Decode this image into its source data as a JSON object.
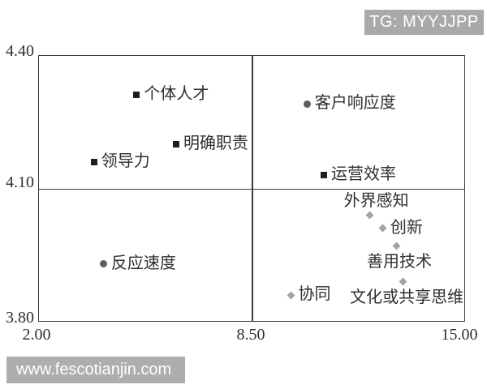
{
  "overlays": {
    "badge_text": "TG: MYYJJPP",
    "watermark_text": "www.fescotianjin.com"
  },
  "colors": {
    "badge_bg": "#a9a9a9",
    "watermark_bg": "#aeaeae",
    "axis_line": "#3b3b3b",
    "label_text": "#2f2f2f",
    "marker_square": "#1e1e1e",
    "marker_circle": "#5e5e5e",
    "marker_diamond": "#a3a3a3"
  },
  "chart_data": {
    "type": "scatter",
    "title": "",
    "xlabel": "",
    "ylabel": "",
    "grid": false,
    "legend": false,
    "x_axis": {
      "min": 2.0,
      "max": 15.0,
      "ticks": [
        "2.00",
        "8.50",
        "15.00"
      ]
    },
    "y_axis": {
      "min": 3.8,
      "max": 4.4,
      "ticks": [
        "4.40",
        "4.10",
        "3.80"
      ]
    },
    "quadrant_lines": {
      "x": 8.5,
      "y": 4.1
    },
    "points": [
      {
        "label": "个体人才",
        "x": 5.0,
        "y": 4.31,
        "marker": "square",
        "label_pos": "right",
        "label_dx": 0
      },
      {
        "label": "明确职责",
        "x": 6.2,
        "y": 4.2,
        "marker": "square",
        "label_pos": "right",
        "label_dx": 0
      },
      {
        "label": "领导力",
        "x": 3.7,
        "y": 4.16,
        "marker": "square",
        "label_pos": "right",
        "label_dx": 0
      },
      {
        "label": "客户响应度",
        "x": 10.2,
        "y": 4.29,
        "marker": "circle",
        "label_pos": "right",
        "label_dx": 0
      },
      {
        "label": "运营效率",
        "x": 10.7,
        "y": 4.13,
        "marker": "square",
        "label_pos": "right",
        "label_dx": 0
      },
      {
        "label": "反应速度",
        "x": 4.0,
        "y": 3.93,
        "marker": "circle",
        "label_pos": "right",
        "label_dx": 0
      },
      {
        "label": "外界感知",
        "x": 12.1,
        "y": 4.04,
        "marker": "diamond",
        "label_pos": "above",
        "label_dx": 8
      },
      {
        "label": "创新",
        "x": 12.5,
        "y": 4.01,
        "marker": "diamond",
        "label_pos": "right",
        "label_dx": 0
      },
      {
        "label": "善用技术",
        "x": 12.9,
        "y": 3.97,
        "marker": "diamond",
        "label_pos": "below",
        "label_dx": 4
      },
      {
        "label": "文化或共享思维",
        "x": 13.1,
        "y": 3.89,
        "marker": "diamond",
        "label_pos": "below",
        "label_dx": 5
      },
      {
        "label": "协同",
        "x": 9.7,
        "y": 3.86,
        "marker": "diamond",
        "label_pos": "right",
        "label_dx": 0
      }
    ]
  }
}
